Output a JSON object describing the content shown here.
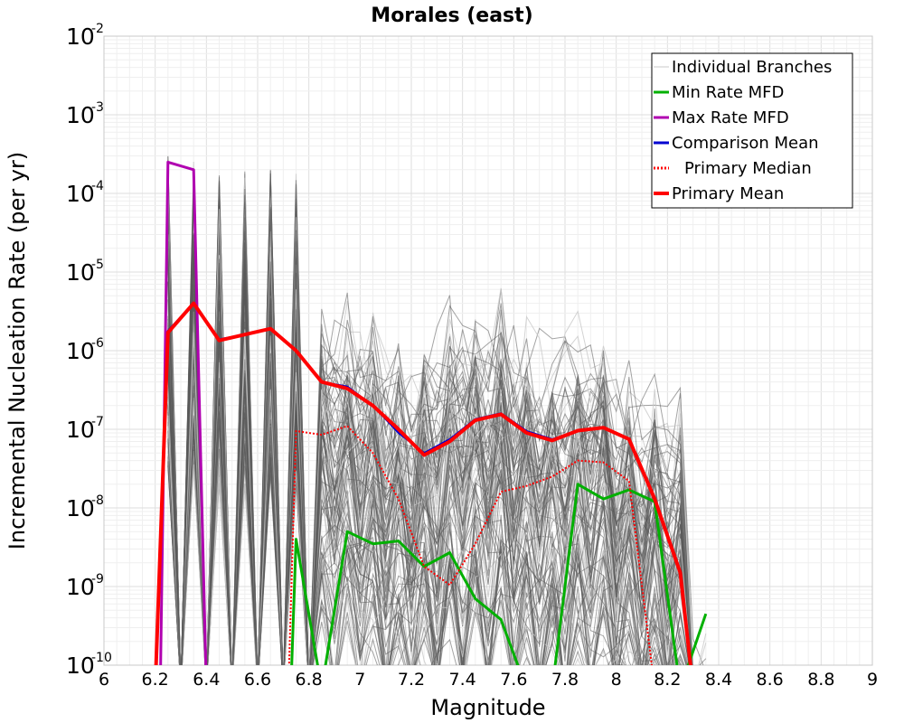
{
  "chart_data": {
    "type": "line",
    "title": "Morales (east)",
    "xlabel": "Magnitude",
    "ylabel": "Incremental Nucleation Rate (per yr)",
    "xlim": [
      6,
      9
    ],
    "ylim": [
      1e-10,
      0.01
    ],
    "yscale": "log",
    "grid": true,
    "legend_position": "top-right",
    "x_ticks": [
      "6",
      "6.2",
      "6.4",
      "6.6",
      "6.8",
      "7",
      "7.2",
      "7.4",
      "7.6",
      "7.8",
      "8",
      "8.2",
      "8.4",
      "8.6",
      "8.8",
      "9"
    ],
    "y_ticks": [
      {
        "base": "10",
        "exp": "-10"
      },
      {
        "base": "10",
        "exp": "-9"
      },
      {
        "base": "10",
        "exp": "-8"
      },
      {
        "base": "10",
        "exp": "-7"
      },
      {
        "base": "10",
        "exp": "-6"
      },
      {
        "base": "10",
        "exp": "-5"
      },
      {
        "base": "10",
        "exp": "-4"
      },
      {
        "base": "10",
        "exp": "-3"
      },
      {
        "base": "10",
        "exp": "-2"
      }
    ],
    "series": [
      {
        "name": "Individual Branches",
        "color": "#c8c8c8",
        "peaks": [
          {
            "x": 6.25,
            "y": 0.0003
          },
          {
            "x": 6.35,
            "y": 0.0003
          },
          {
            "x": 6.45,
            "y": 0.0002
          },
          {
            "x": 6.55,
            "y": 0.0002
          },
          {
            "x": 6.65,
            "y": 0.0002
          },
          {
            "x": 6.75,
            "y": 0.0002
          },
          {
            "x": 6.85,
            "y": 8e-06
          },
          {
            "x": 6.95,
            "y": 8e-06
          },
          {
            "x": 7.05,
            "y": 5e-06
          },
          {
            "x": 7.15,
            "y": 2e-06
          },
          {
            "x": 7.25,
            "y": 3e-06
          },
          {
            "x": 7.35,
            "y": 6e-06
          },
          {
            "x": 7.45,
            "y": 7e-06
          },
          {
            "x": 7.55,
            "y": 8e-06
          },
          {
            "x": 7.65,
            "y": 3e-06
          },
          {
            "x": 7.75,
            "y": 2.5e-06
          },
          {
            "x": 7.85,
            "y": 4e-06
          },
          {
            "x": 7.95,
            "y": 3e-06
          },
          {
            "x": 8.05,
            "y": 1e-06
          },
          {
            "x": 8.15,
            "y": 7e-07
          },
          {
            "x": 8.25,
            "y": 4e-07
          },
          {
            "x": 8.35,
            "y": 3e-10
          }
        ]
      },
      {
        "name": "Min Rate MFD",
        "color": "#00b000",
        "x": [
          6.75,
          6.85,
          6.95,
          7.05,
          7.15,
          7.25,
          7.35,
          7.45,
          7.55,
          7.65,
          7.75,
          7.85,
          7.95,
          8.05,
          8.15,
          8.25,
          8.35
        ],
        "y": [
          4e-09,
          1e-11,
          5e-09,
          3.5e-09,
          3.8e-09,
          1.8e-09,
          2.7e-09,
          7e-10,
          3.8e-10,
          1e-11,
          1e-11,
          2e-08,
          1.3e-08,
          1.7e-08,
          1.2e-08,
          1e-11,
          4.5e-10
        ]
      },
      {
        "name": "Max Rate MFD",
        "color": "#b000b0",
        "x": [
          6.25,
          6.35
        ],
        "y": [
          0.00025,
          0.0002
        ]
      },
      {
        "name": "Comparison Mean",
        "color": "#0000d0",
        "x": [
          6.25,
          6.35,
          6.45,
          6.55,
          6.65,
          6.75,
          6.85,
          6.95,
          7.05,
          7.15,
          7.25,
          7.35,
          7.45,
          7.55,
          7.65,
          7.75,
          7.85,
          7.95,
          8.05,
          8.15,
          8.25
        ],
        "y": [
          1.8e-06,
          4e-06,
          1.4e-06,
          1.6e-06,
          1.9e-06,
          1e-06,
          4e-07,
          3.5e-07,
          2e-07,
          9e-08,
          5e-08,
          7.5e-08,
          1.35e-07,
          1.6e-07,
          9.5e-08,
          7.5e-08,
          9.5e-08,
          1.05e-07,
          7.5e-08,
          1.3e-08,
          1.5e-09
        ]
      },
      {
        "name": "Primary Median",
        "color": "#ff0000",
        "x": [
          6.75,
          6.85,
          6.95,
          7.05,
          7.15,
          7.25,
          7.35,
          7.45,
          7.55,
          7.65,
          7.75,
          7.85,
          7.95,
          8.05
        ],
        "y": [
          9.5e-08,
          8.5e-08,
          1.1e-07,
          5e-08,
          1.3e-08,
          1.8e-09,
          1.05e-09,
          3.5e-09,
          1.6e-08,
          1.9e-08,
          2.5e-08,
          4e-08,
          3.8e-08,
          2.2e-08
        ]
      },
      {
        "name": "Primary Mean",
        "color": "#ff0000",
        "x": [
          6.25,
          6.35,
          6.45,
          6.55,
          6.65,
          6.75,
          6.85,
          6.95,
          7.05,
          7.15,
          7.25,
          7.35,
          7.45,
          7.55,
          7.65,
          7.75,
          7.85,
          7.95,
          8.05,
          8.15,
          8.25
        ],
        "y": [
          1.7e-06,
          4e-06,
          1.35e-06,
          1.6e-06,
          1.9e-06,
          1e-06,
          4e-07,
          3.3e-07,
          2e-07,
          1e-07,
          4.7e-08,
          7e-08,
          1.3e-07,
          1.55e-07,
          9e-08,
          7.2e-08,
          9.6e-08,
          1.05e-07,
          7.5e-08,
          1.3e-08,
          1.5e-09
        ]
      }
    ]
  }
}
